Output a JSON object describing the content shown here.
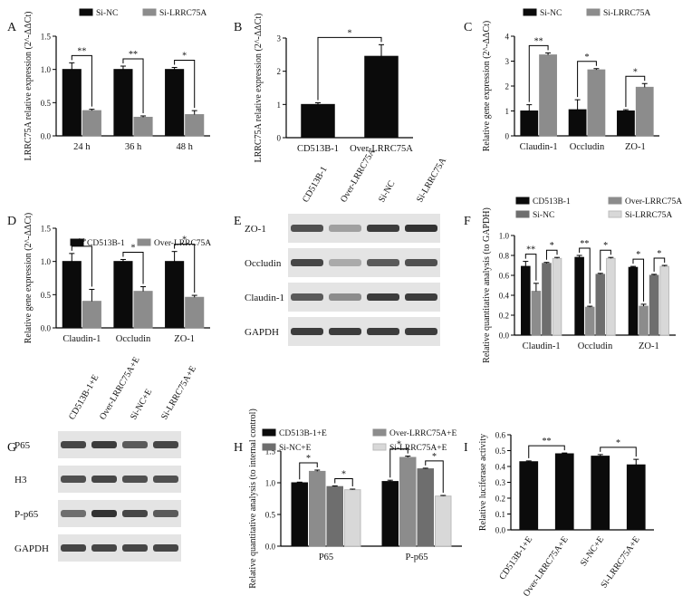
{
  "colors": {
    "black": "#0b0b0b",
    "gray": "#8c8c8c",
    "darkgray": "#6e6e6e",
    "lightgray": "#d8d8d8"
  },
  "chart_data": [
    {
      "panel": "A",
      "type": "bar",
      "ylabel": "LRRC75A relative expression (2^-ΔΔCt)",
      "ylim": [
        0,
        1.5
      ],
      "yticks": [
        "0.0",
        "0.5",
        "1.0",
        "1.5"
      ],
      "categories": [
        "24 h",
        "36 h",
        "48 h"
      ],
      "legend": [
        "Si-NC",
        "Si-LRRC75A"
      ],
      "series": [
        {
          "name": "Si-NC",
          "color": "#0b0b0b",
          "values": [
            1.0,
            1.0,
            1.0
          ],
          "errors": [
            0.1,
            0.05,
            0.03
          ]
        },
        {
          "name": "Si-LRRC75A",
          "color": "#8c8c8c",
          "values": [
            0.38,
            0.28,
            0.32
          ],
          "errors": [
            0.02,
            0.02,
            0.06
          ]
        }
      ],
      "sig": [
        "**",
        "**",
        "*"
      ]
    },
    {
      "panel": "B",
      "type": "bar",
      "ylabel": "LRRC75A relative expression (2^-ΔΔCt)",
      "ylim": [
        0,
        3
      ],
      "yticks": [
        "0",
        "1",
        "2",
        "3"
      ],
      "categories": [
        "CD513B-1",
        "Over-LRRC75A"
      ],
      "series": [
        {
          "name": "",
          "color": "#0b0b0b",
          "values": [
            1.0,
            2.45
          ],
          "errors": [
            0.05,
            0.35
          ]
        }
      ],
      "sig": [
        "*"
      ]
    },
    {
      "panel": "C",
      "type": "bar",
      "ylabel": "Relative gene expression (2^-ΔΔCt)",
      "ylim": [
        0,
        4
      ],
      "yticks": [
        "0",
        "1",
        "2",
        "3",
        "4"
      ],
      "categories": [
        "Claudin-1",
        "Occludin",
        "ZO-1"
      ],
      "legend": [
        "Si-NC",
        "Si-LRRC75A"
      ],
      "series": [
        {
          "name": "Si-NC",
          "color": "#0b0b0b",
          "values": [
            1.0,
            1.05,
            1.0
          ],
          "errors": [
            0.25,
            0.4,
            0.05
          ]
        },
        {
          "name": "Si-LRRC75A",
          "color": "#8c8c8c",
          "values": [
            3.25,
            2.65,
            1.95
          ],
          "errors": [
            0.08,
            0.05,
            0.15
          ]
        }
      ],
      "sig": [
        "**",
        "*",
        "*"
      ]
    },
    {
      "panel": "D",
      "type": "bar",
      "ylabel": "Relative gene expression (2^-ΔΔCt)",
      "ylim": [
        0,
        1.5
      ],
      "yticks": [
        "0.0",
        "0.5",
        "1.0",
        "1.5"
      ],
      "categories": [
        "Claudin-1",
        "Occludin",
        "ZO-1"
      ],
      "legend": [
        "CD513B-1",
        "Over-LRRC75A"
      ],
      "series": [
        {
          "name": "CD513B-1",
          "color": "#0b0b0b",
          "values": [
            1.0,
            1.0,
            1.0
          ],
          "errors": [
            0.12,
            0.03,
            0.15
          ]
        },
        {
          "name": "Over-LRRC75A",
          "color": "#8c8c8c",
          "values": [
            0.4,
            0.55,
            0.46
          ],
          "errors": [
            0.18,
            0.07,
            0.03
          ]
        }
      ],
      "sig": [
        "**",
        "*",
        "*"
      ]
    },
    {
      "panel": "F",
      "type": "bar",
      "ylabel": "Relative quantitative analysis (to GAPDH)",
      "ylim": [
        0,
        1.0
      ],
      "yticks": [
        "0.0",
        "0.2",
        "0.4",
        "0.6",
        "0.8",
        "1.0"
      ],
      "categories": [
        "Claudin-1",
        "Occludin",
        "ZO-1"
      ],
      "legend": [
        "CD513B-1",
        "Over-LRRC75A",
        "Si-NC",
        "Si-LRRC75A"
      ],
      "series": [
        {
          "name": "CD513B-1",
          "color": "#0b0b0b",
          "values": [
            0.69,
            0.78,
            0.68
          ],
          "errors": [
            0.05,
            0.02,
            0.01
          ]
        },
        {
          "name": "Over-LRRC75A",
          "color": "#8c8c8c",
          "values": [
            0.44,
            0.28,
            0.29
          ],
          "errors": [
            0.08,
            0.01,
            0.02
          ]
        },
        {
          "name": "Si-NC",
          "color": "#6e6e6e",
          "values": [
            0.72,
            0.61,
            0.6
          ],
          "errors": [
            0.01,
            0.01,
            0.01
          ]
        },
        {
          "name": "Si-LRRC75A",
          "color": "#d8d8d8",
          "values": [
            0.77,
            0.77,
            0.69
          ],
          "errors": [
            0.01,
            0.01,
            0.01
          ]
        }
      ],
      "sig": [
        "**",
        "*",
        "**",
        "*",
        "*",
        "*"
      ]
    },
    {
      "panel": "H",
      "type": "bar",
      "ylabel": "Relative quantitative analysis (to internal control)",
      "ylim": [
        0,
        1.5
      ],
      "yticks": [
        "0.0",
        "0.5",
        "1.0",
        "1.5"
      ],
      "categories": [
        "P65",
        "P-p65"
      ],
      "legend": [
        "CD513B-1+E",
        "Over-LRRC75A+E",
        "Si-NC+E",
        "Si-LRRC75A+E"
      ],
      "series": [
        {
          "name": "CD513B-1+E",
          "color": "#0b0b0b",
          "values": [
            1.0,
            1.02
          ],
          "errors": [
            0.01,
            0.02
          ]
        },
        {
          "name": "Over-LRRC75A+E",
          "color": "#8c8c8c",
          "values": [
            1.18,
            1.4
          ],
          "errors": [
            0.02,
            0.02
          ]
        },
        {
          "name": "Si-NC+E",
          "color": "#6e6e6e",
          "values": [
            0.94,
            1.22
          ],
          "errors": [
            0.01,
            0.01
          ]
        },
        {
          "name": "Si-LRRC75A+E",
          "color": "#d8d8d8",
          "values": [
            0.89,
            0.79
          ],
          "errors": [
            0.01,
            0.01
          ]
        }
      ],
      "sig": [
        "*",
        "*",
        "*",
        "*"
      ]
    },
    {
      "panel": "I",
      "type": "bar",
      "ylabel": "Relative luciferase activity",
      "ylim": [
        0,
        0.6
      ],
      "yticks": [
        "0.0",
        "0.1",
        "0.2",
        "0.3",
        "0.4",
        "0.5",
        "0.6"
      ],
      "categories": [
        "CD513B-1+E",
        "Over-LRRC75A+E",
        "Si-NC+E",
        "Si-LRRC75A+E"
      ],
      "series": [
        {
          "name": "",
          "color": "#0b0b0b",
          "values": [
            0.43,
            0.48,
            0.465,
            0.41
          ],
          "errors": [
            0.005,
            0.005,
            0.01,
            0.035
          ]
        }
      ],
      "sig": [
        "**",
        "*"
      ]
    }
  ],
  "blots": [
    {
      "panel": "E",
      "lanes": [
        "CD513B-1",
        "Over-LRRC75A",
        "Si-NC",
        "Si-LRRC75A"
      ],
      "rows": [
        {
          "label": "ZO-1",
          "intensity": [
            0.75,
            0.35,
            0.85,
            0.9
          ]
        },
        {
          "label": "Occludin",
          "intensity": [
            0.8,
            0.3,
            0.7,
            0.75
          ]
        },
        {
          "label": "Claudin-1",
          "intensity": [
            0.7,
            0.45,
            0.85,
            0.85
          ]
        },
        {
          "label": "GAPDH",
          "intensity": [
            0.85,
            0.85,
            0.85,
            0.85
          ]
        }
      ]
    },
    {
      "panel": "G",
      "lanes": [
        "CD513B-1+E",
        "Over-LRRC75A+E",
        "Si-NC+E",
        "Si-LRRC75A+E"
      ],
      "rows": [
        {
          "label": "P65",
          "intensity": [
            0.8,
            0.85,
            0.7,
            0.8
          ]
        },
        {
          "label": "H3",
          "intensity": [
            0.75,
            0.8,
            0.75,
            0.75
          ]
        },
        {
          "label": "P-p65",
          "intensity": [
            0.6,
            0.9,
            0.8,
            0.7
          ]
        },
        {
          "label": "GAPDH",
          "intensity": [
            0.8,
            0.8,
            0.8,
            0.8
          ]
        }
      ]
    }
  ]
}
